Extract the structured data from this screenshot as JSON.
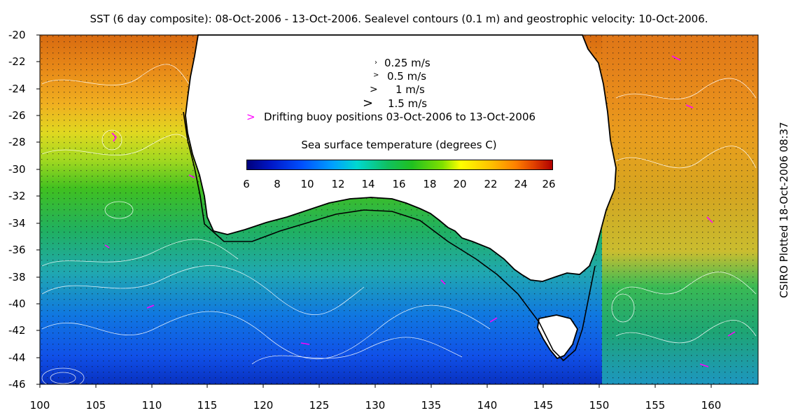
{
  "title": "SST (6 day composite): 08-Oct-2006 - 13-Oct-2006. Sealevel contours (0.1 m) and geostrophic velocity: 10-Oct-2006.",
  "side_note": "CSIRO Plotted 18-Oct-2006 08:37",
  "axes": {
    "lat_ticks": [
      "-20",
      "-22",
      "-24",
      "-26",
      "-28",
      "-30",
      "-32",
      "-34",
      "-36",
      "-38",
      "-40",
      "-42",
      "-44",
      "-46"
    ],
    "lon_ticks": [
      "100",
      "105",
      "110",
      "115",
      "120",
      "125",
      "130",
      "135",
      "140",
      "145",
      "150",
      "155",
      "160"
    ]
  },
  "legend": {
    "velocity": [
      {
        "label": "0.25 m/s",
        "symbol": "›"
      },
      {
        "label": "0.5 m/s",
        "symbol": ">"
      },
      {
        "label": "1 m/s",
        "symbol": ">"
      },
      {
        "label": "1.5 m/s",
        "symbol": ">"
      }
    ],
    "buoy_label": "Drifting buoy positions 03-Oct-2006 to 13-Oct-2006",
    "buoy_symbol": ">",
    "buoy_color": "#ff00ff"
  },
  "colorbar": {
    "title": "Sea surface temperature (degrees C)",
    "ticks": [
      "6",
      "8",
      "10",
      "12",
      "14",
      "16",
      "18",
      "20",
      "22",
      "24",
      "26"
    ]
  },
  "colors": {
    "land": "#ffffff",
    "coast": "#000000",
    "contour": "#ffffff"
  }
}
